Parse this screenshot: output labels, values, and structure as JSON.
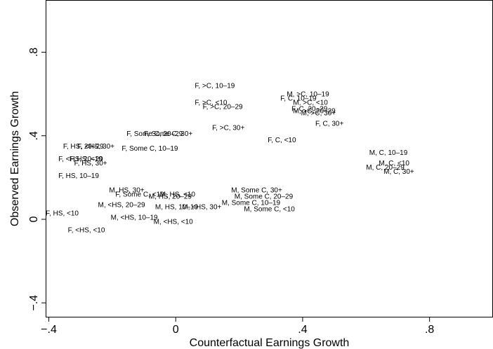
{
  "chart_data": {
    "type": "scatter",
    "xlabel": "Counterfactual Earnings Growth",
    "ylabel": "Observed Earnings Growth",
    "xlim": [
      -0.41,
      1.0
    ],
    "ylim": [
      -0.47,
      1.05
    ],
    "xticks": [
      {
        "value": -0.4,
        "label": "−.4"
      },
      {
        "value": 0,
        "label": "0"
      },
      {
        "value": 0.4,
        "label": ".4"
      },
      {
        "value": 0.8,
        "label": ".8"
      }
    ],
    "yticks": [
      {
        "value": -0.4,
        "label": "−.4"
      },
      {
        "value": 0,
        "label": "0"
      },
      {
        "value": 0.4,
        "label": ".4"
      },
      {
        "value": 0.8,
        "label": ".8"
      }
    ],
    "grid": false,
    "points": [
      {
        "label": "F, >C, 10–19",
        "x": 0.06,
        "y": 0.64
      },
      {
        "label": "F, >C, <10",
        "x": 0.06,
        "y": 0.56
      },
      {
        "label": "F, >C, 20–29",
        "x": 0.085,
        "y": 0.54
      },
      {
        "label": "F, >C, 30+",
        "x": 0.115,
        "y": 0.44
      },
      {
        "label": "M, >C, 10–19",
        "x": 0.35,
        "y": 0.6
      },
      {
        "label": "F, C, 10–19",
        "x": 0.33,
        "y": 0.58
      },
      {
        "label": "M, >C, <10",
        "x": 0.37,
        "y": 0.56
      },
      {
        "label": "F, C, 20–29",
        "x": 0.365,
        "y": 0.53
      },
      {
        "label": "M, >C, 20–29",
        "x": 0.37,
        "y": 0.52
      },
      {
        "label": "M, >C, 30+",
        "x": 0.395,
        "y": 0.51
      },
      {
        "label": "F, C, 30+",
        "x": 0.44,
        "y": 0.46
      },
      {
        "label": "F, C, <10",
        "x": 0.29,
        "y": 0.38
      },
      {
        "label": "M, C, 10–19",
        "x": 0.61,
        "y": 0.32
      },
      {
        "label": "M, C, <10",
        "x": 0.64,
        "y": 0.27
      },
      {
        "label": "M, C, 20–29",
        "x": 0.6,
        "y": 0.25
      },
      {
        "label": "M, C, 30+",
        "x": 0.655,
        "y": 0.23
      },
      {
        "label": "F, Some C, 20–29",
        "x": -0.155,
        "y": 0.41
      },
      {
        "label": "F, Some C, 30+",
        "x": -0.1,
        "y": 0.41
      },
      {
        "label": "F, Some C, 10–19",
        "x": -0.17,
        "y": 0.34
      },
      {
        "label": "F, HS, 20–29",
        "x": -0.355,
        "y": 0.35
      },
      {
        "label": "F, <HS, 30+",
        "x": -0.31,
        "y": 0.35
      },
      {
        "label": "F, <HS, 20–29",
        "x": -0.37,
        "y": 0.29
      },
      {
        "label": "F, HS, <10",
        "x": -0.335,
        "y": 0.29
      },
      {
        "label": "F, HS, 30+",
        "x": -0.32,
        "y": 0.27
      },
      {
        "label": "F, HS, 10–19",
        "x": -0.37,
        "y": 0.21
      },
      {
        "label": "M, HS, 30+",
        "x": -0.21,
        "y": 0.14
      },
      {
        "label": "F, Some C, <10",
        "x": -0.19,
        "y": 0.12
      },
      {
        "label": "M, HS, <10",
        "x": -0.05,
        "y": 0.12
      },
      {
        "label": "M, HS, 20–29",
        "x": -0.085,
        "y": 0.11
      },
      {
        "label": "M, <HS, 20–29",
        "x": -0.245,
        "y": 0.07
      },
      {
        "label": "M, HS, 10–19",
        "x": -0.065,
        "y": 0.06
      },
      {
        "label": "M, <HS, 30+",
        "x": 0.02,
        "y": 0.06
      },
      {
        "label": "F, HS, <10",
        "x": -0.41,
        "y": 0.03
      },
      {
        "label": "M, <HS, 10–19",
        "x": -0.205,
        "y": 0.01
      },
      {
        "label": "M, <HS, <10",
        "x": -0.07,
        "y": -0.01
      },
      {
        "label": "F, <HS, <10",
        "x": -0.34,
        "y": -0.05
      },
      {
        "label": "M, Some C, 30+",
        "x": 0.175,
        "y": 0.14
      },
      {
        "label": "M, Some C, 20–29",
        "x": 0.185,
        "y": 0.11
      },
      {
        "label": "M, Some C, 10–19",
        "x": 0.145,
        "y": 0.08
      },
      {
        "label": "M, Some C, <10",
        "x": 0.215,
        "y": 0.05
      }
    ]
  }
}
